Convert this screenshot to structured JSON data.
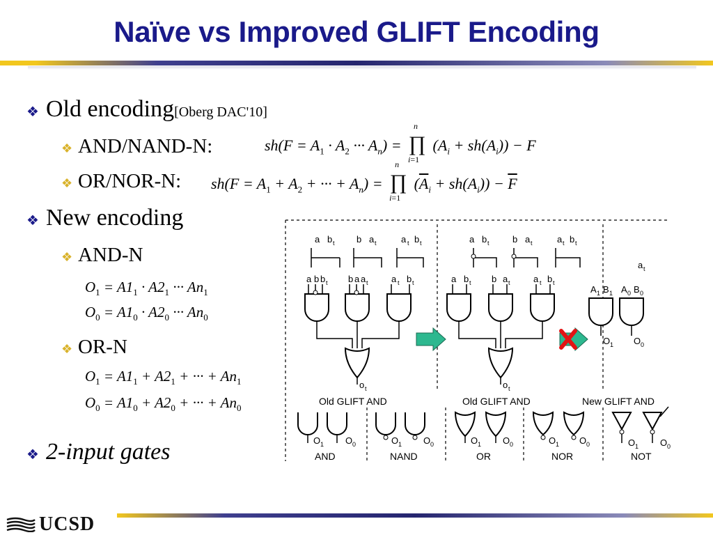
{
  "slide": {
    "title": "Naïve vs Improved GLIFT Encoding",
    "logo": "UCSD"
  },
  "bullets": {
    "old_encoding": "Old encoding",
    "old_citation": "[Oberg DAC'10]",
    "and_nand_n": "AND/NAND-N:",
    "or_nor_n": "OR/NOR-N:",
    "new_encoding": "New encoding",
    "and_n": "AND-N",
    "or_n": "OR-N",
    "two_input": "2-input gates"
  },
  "equations": {
    "and_nand_n": "sh(F = A1·A2···An) = ∏ i=1..n (Ai + sh(Ai)) − F",
    "or_nor_n": "sh(F = A1 + A2 + ··· + An) = ∏ i=1..n (¬Ai + sh(Ai)) − ¬F",
    "and_o1": "O1 = A11 · A21 ··· An1",
    "and_o0": "O0 = A10 · A20 ··· An0",
    "or_o1": "O1 = A11 + A21 + ··· + An1",
    "or_o0": "O0 = A10 + A20 + ··· + An0"
  },
  "diagram": {
    "captions": {
      "old_and_1": "Old GLIFT AND",
      "old_and_2": "Old GLIFT AND",
      "new_and": "New GLIFT AND"
    },
    "gate_types": [
      "AND",
      "NAND",
      "OR",
      "NOR",
      "NOT"
    ],
    "labels": {
      "a": "a",
      "b": "b",
      "t": "t",
      "out": "o",
      "O": "O",
      "A": "A",
      "B": "B",
      "one": "1",
      "zero": "0"
    }
  },
  "colors": {
    "title": "#1a1a8a",
    "bullet_l1": "#1a1a8a",
    "bullet_l2": "#d9b22a",
    "arrow": "#2db88f",
    "cross": "#e31414"
  }
}
